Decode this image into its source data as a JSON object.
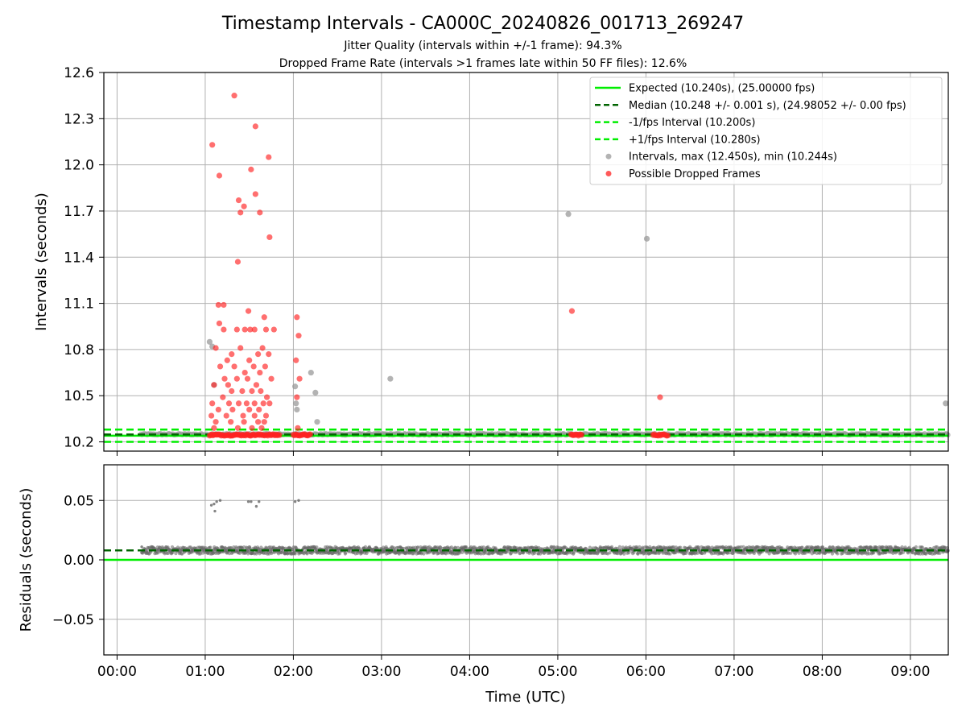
{
  "chart_data": [
    {
      "type": "scatter",
      "title": "Timestamp Intervals - CA000C_20240826_001713_269247",
      "subtitle_1": "Jitter Quality (intervals within +/-1 frame): 94.3%",
      "subtitle_2": "Dropped Frame Rate (intervals >1 frames late within 50 FF files): 12.6%",
      "xlabel": "",
      "ylabel": "Intervals (seconds)",
      "ylim": [
        10.14,
        12.6
      ],
      "xlim_hours": [
        -0.15,
        9.43
      ],
      "y_ticks": [
        "10.2",
        "10.5",
        "10.8",
        "11.1",
        "11.4",
        "11.7",
        "12.0",
        "12.3",
        "12.6"
      ],
      "y_tick_values": [
        10.2,
        10.5,
        10.8,
        11.1,
        11.4,
        11.7,
        12.0,
        12.3,
        12.6
      ],
      "grid": true,
      "legend_position": "top-right",
      "reference_lines": {
        "expected": 10.24,
        "median": 10.248,
        "minus_one_fps": 10.2,
        "plus_one_fps": 10.28
      },
      "legend": [
        {
          "label": "Expected (10.240s), (25.00000 fps)",
          "style": "solid",
          "color": "#00ee00"
        },
        {
          "label": "Median (10.248 +/- 0.001 s), (24.98052 +/- 0.00 fps)",
          "style": "dashed",
          "color": "#006400"
        },
        {
          "label": "-1/fps Interval (10.200s)",
          "style": "dashed",
          "color": "#00ee00"
        },
        {
          "label": "+1/fps Interval (10.280s)",
          "style": "dashed",
          "color": "#00ee00"
        },
        {
          "label": "Intervals, max (12.450s), min (10.244s)",
          "style": "marker",
          "color": "#999999"
        },
        {
          "label": "Possible Dropped Frames",
          "style": "marker",
          "color": "#ff2222"
        }
      ],
      "series": [
        {
          "name": "Intervals, max (12.450s), min (10.244s)",
          "color": "#999999",
          "points": [
            [
              1.05,
              10.85
            ],
            [
              1.08,
              10.82
            ],
            [
              1.1,
              10.57
            ],
            [
              2.02,
              10.56
            ],
            [
              2.03,
              10.45
            ],
            [
              2.04,
              10.41
            ],
            [
              2.2,
              10.65
            ],
            [
              2.25,
              10.52
            ],
            [
              2.27,
              10.33
            ],
            [
              3.1,
              10.61
            ],
            [
              5.12,
              11.68
            ],
            [
              6.01,
              11.52
            ],
            [
              9.4,
              10.45
            ]
          ],
          "baseline_band": {
            "x_start": 0.27,
            "x_end": 9.43,
            "y_min": 10.244,
            "y_max": 10.255
          }
        },
        {
          "name": "Possible Dropped Frames",
          "color": "#ff2222",
          "points": [
            [
              1.33,
              12.45
            ],
            [
              1.57,
              12.25
            ],
            [
              1.08,
              12.13
            ],
            [
              1.72,
              12.05
            ],
            [
              1.52,
              11.97
            ],
            [
              1.16,
              11.93
            ],
            [
              1.57,
              11.81
            ],
            [
              1.38,
              11.77
            ],
            [
              1.44,
              11.73
            ],
            [
              1.4,
              11.69
            ],
            [
              1.62,
              11.69
            ],
            [
              1.73,
              11.53
            ],
            [
              1.37,
              11.37
            ],
            [
              1.15,
              11.09
            ],
            [
              1.21,
              11.09
            ],
            [
              1.49,
              11.05
            ],
            [
              1.67,
              11.01
            ],
            [
              2.04,
              11.01
            ],
            [
              1.16,
              10.97
            ],
            [
              1.21,
              10.93
            ],
            [
              1.36,
              10.93
            ],
            [
              1.45,
              10.93
            ],
            [
              1.51,
              10.93
            ],
            [
              1.56,
              10.93
            ],
            [
              1.69,
              10.93
            ],
            [
              1.78,
              10.93
            ],
            [
              2.06,
              10.89
            ],
            [
              1.12,
              10.81
            ],
            [
              1.3,
              10.77
            ],
            [
              1.25,
              10.73
            ],
            [
              1.4,
              10.81
            ],
            [
              1.5,
              10.73
            ],
            [
              1.6,
              10.77
            ],
            [
              1.65,
              10.81
            ],
            [
              1.72,
              10.77
            ],
            [
              2.03,
              10.73
            ],
            [
              1.17,
              10.69
            ],
            [
              1.33,
              10.69
            ],
            [
              1.45,
              10.65
            ],
            [
              1.55,
              10.69
            ],
            [
              1.62,
              10.65
            ],
            [
              1.68,
              10.69
            ],
            [
              1.22,
              10.61
            ],
            [
              1.36,
              10.61
            ],
            [
              1.48,
              10.61
            ],
            [
              1.58,
              10.57
            ],
            [
              1.75,
              10.61
            ],
            [
              2.07,
              10.61
            ],
            [
              1.1,
              10.57
            ],
            [
              1.26,
              10.57
            ],
            [
              1.3,
              10.53
            ],
            [
              1.42,
              10.53
            ],
            [
              1.53,
              10.53
            ],
            [
              1.63,
              10.53
            ],
            [
              1.7,
              10.49
            ],
            [
              2.04,
              10.49
            ],
            [
              1.08,
              10.45
            ],
            [
              1.2,
              10.49
            ],
            [
              1.27,
              10.45
            ],
            [
              1.38,
              10.45
            ],
            [
              1.47,
              10.45
            ],
            [
              1.56,
              10.45
            ],
            [
              1.66,
              10.45
            ],
            [
              1.73,
              10.45
            ],
            [
              1.15,
              10.41
            ],
            [
              1.31,
              10.41
            ],
            [
              1.5,
              10.41
            ],
            [
              1.61,
              10.41
            ],
            [
              1.07,
              10.37
            ],
            [
              1.24,
              10.37
            ],
            [
              1.43,
              10.37
            ],
            [
              1.56,
              10.37
            ],
            [
              1.69,
              10.37
            ],
            [
              1.12,
              10.33
            ],
            [
              1.29,
              10.33
            ],
            [
              1.44,
              10.33
            ],
            [
              1.6,
              10.33
            ],
            [
              1.67,
              10.33
            ],
            [
              1.1,
              10.29
            ],
            [
              1.37,
              10.29
            ],
            [
              1.53,
              10.29
            ],
            [
              1.64,
              10.29
            ],
            [
              2.05,
              10.29
            ],
            [
              5.16,
              11.05
            ],
            [
              6.16,
              10.49
            ]
          ],
          "clusters": [
            {
              "x_start": 1.05,
              "x_end": 1.85,
              "y": 10.245
            },
            {
              "x_start": 2.0,
              "x_end": 2.2,
              "y": 10.245
            },
            {
              "x_start": 5.15,
              "x_end": 5.28,
              "y": 10.245
            },
            {
              "x_start": 6.08,
              "x_end": 6.25,
              "y": 10.245
            }
          ]
        }
      ]
    },
    {
      "type": "scatter",
      "xlabel": "Time (UTC)",
      "ylabel": "Residuals (seconds)",
      "ylim": [
        -0.08,
        0.08
      ],
      "xlim_hours": [
        -0.15,
        9.43
      ],
      "y_ticks": [
        "−0.05",
        "0.00",
        "0.05"
      ],
      "y_tick_values": [
        -0.05,
        0.0,
        0.05
      ],
      "x_ticks": [
        "00:00",
        "01:00",
        "02:00",
        "03:00",
        "04:00",
        "05:00",
        "06:00",
        "07:00",
        "08:00",
        "09:00"
      ],
      "x_tick_values": [
        0,
        1,
        2,
        3,
        4,
        5,
        6,
        7,
        8,
        9
      ],
      "grid": true,
      "reference_lines": {
        "expected": 0.0,
        "median": 0.008
      },
      "series": [
        {
          "name": "Residuals",
          "color": "#666666",
          "outliers": [
            [
              1.07,
              0.046
            ],
            [
              1.1,
              0.047
            ],
            [
              1.13,
              0.049
            ],
            [
              1.11,
              0.041
            ],
            [
              1.17,
              0.05
            ],
            [
              1.49,
              0.049
            ],
            [
              1.52,
              0.049
            ],
            [
              1.58,
              0.045
            ],
            [
              1.61,
              0.049
            ],
            [
              2.02,
              0.049
            ],
            [
              2.06,
              0.05
            ],
            [
              0.28,
              0.011
            ]
          ],
          "band": {
            "x_start": 0.28,
            "x_end": 9.43,
            "y_center": 0.008,
            "spread": 0.003
          }
        }
      ]
    }
  ]
}
